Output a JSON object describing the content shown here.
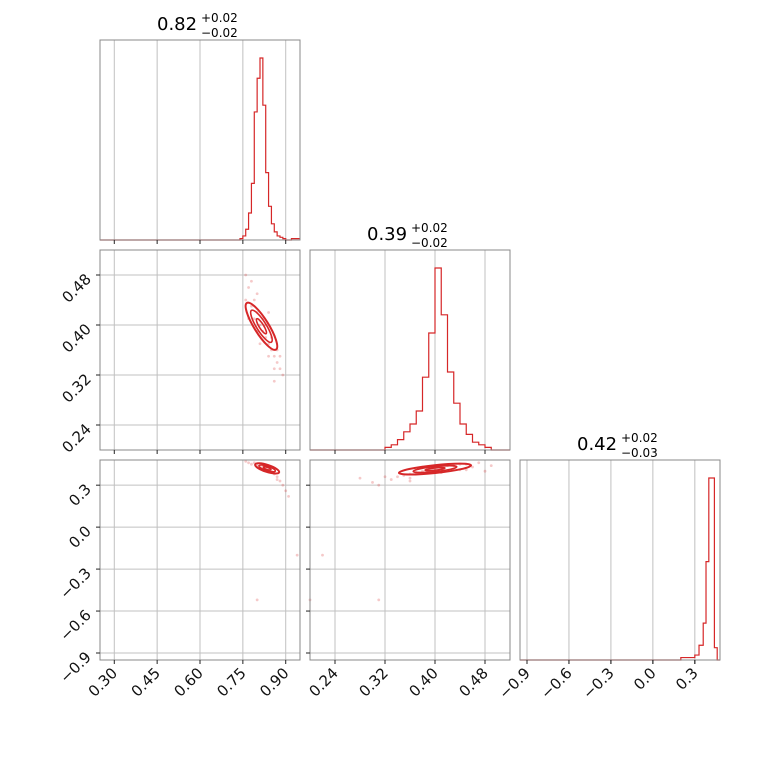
{
  "chart_data": {
    "type": "corner",
    "color": "#d62728",
    "grid": true,
    "parameters": [
      {
        "median": 0.82,
        "plus": 0.02,
        "minus": 0.02,
        "title_main": "0.82",
        "title_sup": "+0.02",
        "title_sub": "−0.02",
        "range": [
          0.25,
          0.95
        ],
        "ticks": [
          0.3,
          0.45,
          0.6,
          0.75,
          0.9
        ],
        "tick_labels": [
          "0.30",
          "0.45",
          "0.60",
          "0.75",
          "0.90"
        ]
      },
      {
        "median": 0.39,
        "plus": 0.02,
        "minus": 0.02,
        "title_main": "0.39",
        "title_sup": "+0.02",
        "title_sub": "−0.02",
        "range": [
          0.2,
          0.52
        ],
        "ticks": [
          0.24,
          0.32,
          0.4,
          0.48
        ],
        "tick_labels": [
          "0.24",
          "0.32",
          "0.40",
          "0.48"
        ]
      },
      {
        "median": 0.42,
        "plus": 0.02,
        "minus": 0.03,
        "title_main": "0.42",
        "title_sup": "+0.02",
        "title_sub": "−0.03",
        "range": [
          -0.95,
          0.48
        ],
        "ticks": [
          -0.9,
          -0.6,
          -0.3,
          0.0,
          0.3
        ],
        "tick_labels": [
          "−0.9",
          "−0.6",
          "−0.3",
          "0.0",
          "0.3"
        ]
      }
    ],
    "histograms": [
      {
        "param": 0,
        "edges": [
          0.25,
          0.74,
          0.75,
          0.76,
          0.77,
          0.78,
          0.79,
          0.8,
          0.81,
          0.82,
          0.83,
          0.84,
          0.85,
          0.86,
          0.87,
          0.88,
          0.89,
          0.9,
          0.91,
          0.92,
          0.95
        ],
        "counts": [
          0,
          1,
          3,
          8,
          20,
          42,
          95,
          120,
          135,
          100,
          50,
          25,
          12,
          6,
          3,
          2,
          1,
          0,
          0,
          1
        ]
      },
      {
        "param": 1,
        "edges": [
          0.2,
          0.32,
          0.33,
          0.34,
          0.35,
          0.36,
          0.37,
          0.38,
          0.39,
          0.4,
          0.41,
          0.42,
          0.43,
          0.44,
          0.45,
          0.46,
          0.47,
          0.48,
          0.49,
          0.52
        ],
        "counts": [
          0,
          1,
          2,
          4,
          7,
          10,
          15,
          28,
          45,
          70,
          52,
          30,
          18,
          10,
          6,
          3,
          2,
          1,
          0
        ]
      },
      {
        "param": 2,
        "edges": [
          -0.95,
          0.2,
          0.25,
          0.3,
          0.33,
          0.36,
          0.38,
          0.4,
          0.42,
          0.44,
          0.46,
          0.48
        ],
        "counts": [
          0,
          1,
          1,
          2,
          6,
          15,
          40,
          74,
          74,
          5,
          0
        ]
      }
    ],
    "scatter": [
      {
        "x_param": 0,
        "y_param": 1,
        "points": [
          [
            0.76,
            0.44
          ],
          [
            0.77,
            0.46
          ],
          [
            0.78,
            0.43
          ],
          [
            0.79,
            0.41
          ],
          [
            0.8,
            0.42
          ],
          [
            0.81,
            0.4
          ],
          [
            0.82,
            0.39
          ],
          [
            0.83,
            0.38
          ],
          [
            0.84,
            0.37
          ],
          [
            0.85,
            0.36
          ],
          [
            0.86,
            0.35
          ],
          [
            0.87,
            0.34
          ],
          [
            0.88,
            0.33
          ],
          [
            0.79,
            0.44
          ],
          [
            0.83,
            0.4
          ],
          [
            0.85,
            0.38
          ],
          [
            0.87,
            0.36
          ],
          [
            0.78,
            0.47
          ],
          [
            0.8,
            0.45
          ],
          [
            0.84,
            0.35
          ],
          [
            0.86,
            0.33
          ],
          [
            0.82,
            0.41
          ],
          [
            0.81,
            0.37
          ],
          [
            0.76,
            0.48
          ],
          [
            0.89,
            0.32
          ],
          [
            0.77,
            0.41
          ],
          [
            0.84,
            0.42
          ],
          [
            0.8,
            0.39
          ],
          [
            0.86,
            0.31
          ],
          [
            0.88,
            0.35
          ]
        ]
      },
      {
        "x_param": 0,
        "y_param": 2,
        "points": [
          [
            0.77,
            0.46
          ],
          [
            0.78,
            0.45
          ],
          [
            0.8,
            0.44
          ],
          [
            0.81,
            0.43
          ],
          [
            0.83,
            0.42
          ],
          [
            0.84,
            0.41
          ],
          [
            0.86,
            0.38
          ],
          [
            0.87,
            0.36
          ],
          [
            0.88,
            0.33
          ],
          [
            0.89,
            0.3
          ],
          [
            0.9,
            0.26
          ],
          [
            0.91,
            0.22
          ],
          [
            0.79,
            0.46
          ],
          [
            0.82,
            0.44
          ],
          [
            0.85,
            0.4
          ],
          [
            0.87,
            0.34
          ],
          [
            0.76,
            0.47
          ],
          [
            0.8,
            -0.52
          ],
          [
            0.94,
            -0.2
          ],
          [
            0.86,
            0.42
          ]
        ]
      },
      {
        "x_param": 1,
        "y_param": 2,
        "points": [
          [
            0.34,
            0.36
          ],
          [
            0.35,
            0.37
          ],
          [
            0.36,
            0.38
          ],
          [
            0.37,
            0.39
          ],
          [
            0.38,
            0.4
          ],
          [
            0.39,
            0.41
          ],
          [
            0.4,
            0.42
          ],
          [
            0.41,
            0.43
          ],
          [
            0.42,
            0.44
          ],
          [
            0.43,
            0.44
          ],
          [
            0.44,
            0.45
          ],
          [
            0.45,
            0.45
          ],
          [
            0.46,
            0.43
          ],
          [
            0.33,
            0.34
          ],
          [
            0.36,
            0.35
          ],
          [
            0.38,
            0.43
          ],
          [
            0.41,
            0.39
          ],
          [
            0.44,
            0.41
          ],
          [
            0.47,
            0.46
          ],
          [
            0.32,
            0.36
          ],
          [
            0.3,
            0.32
          ],
          [
            0.28,
            0.35
          ],
          [
            0.31,
            0.3
          ],
          [
            0.48,
            0.4
          ],
          [
            0.22,
            -0.2
          ],
          [
            0.31,
            -0.52
          ],
          [
            0.2,
            -0.52
          ],
          [
            0.36,
            0.33
          ],
          [
            0.45,
            0.41
          ],
          [
            0.49,
            0.44
          ]
        ]
      }
    ],
    "contours": [
      {
        "x_param": 0,
        "y_param": 1,
        "ellipses": [
          {
            "cx": 0.815,
            "cy": 0.398,
            "rx": 0.025,
            "ry": 0.044,
            "rotate": -32
          },
          {
            "cx": 0.815,
            "cy": 0.398,
            "rx": 0.017,
            "ry": 0.03,
            "rotate": -32
          },
          {
            "cx": 0.815,
            "cy": 0.398,
            "rx": 0.008,
            "ry": 0.014,
            "rotate": -32
          }
        ]
      },
      {
        "x_param": 0,
        "y_param": 2,
        "ellipses": [
          {
            "cx": 0.835,
            "cy": 0.42,
            "rx": 0.044,
            "ry": 0.025,
            "rotate": 18
          },
          {
            "cx": 0.835,
            "cy": 0.42,
            "rx": 0.03,
            "ry": 0.016,
            "rotate": 18
          },
          {
            "cx": 0.835,
            "cy": 0.42,
            "rx": 0.014,
            "ry": 0.008,
            "rotate": 18
          }
        ]
      },
      {
        "x_param": 1,
        "y_param": 2,
        "ellipses": [
          {
            "cx": 0.4,
            "cy": 0.415,
            "rx": 0.058,
            "ry": 0.028,
            "rotate": -6
          },
          {
            "cx": 0.4,
            "cy": 0.415,
            "rx": 0.035,
            "ry": 0.018,
            "rotate": -6
          },
          {
            "cx": 0.4,
            "cy": 0.415,
            "rx": 0.016,
            "ry": 0.008,
            "rotate": -6
          }
        ]
      }
    ]
  }
}
